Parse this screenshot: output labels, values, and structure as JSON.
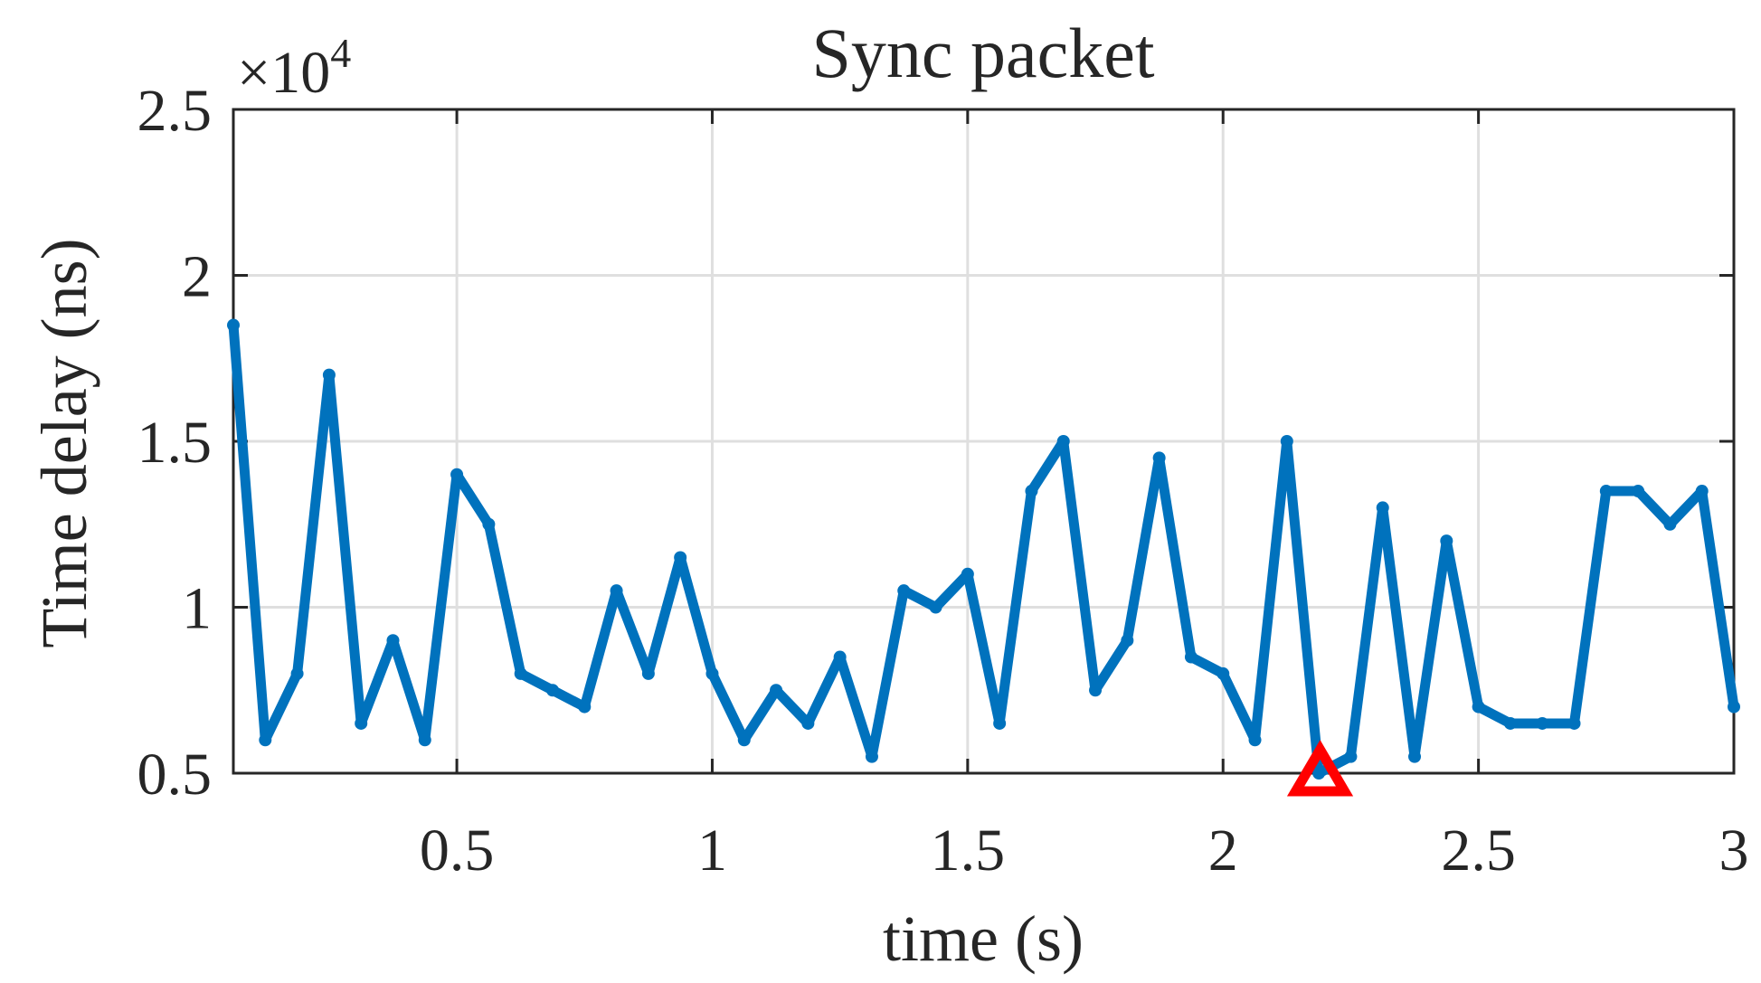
{
  "chart_data": {
    "type": "line",
    "title": "Sync packet",
    "xlabel": "time (s)",
    "ylabel": "Time delay (ns)",
    "y_exponent_label": "×10",
    "y_exponent_power": "4",
    "xlim": [
      0.0625,
      3
    ],
    "ylim": [
      5000,
      25000
    ],
    "x_ticks": [
      0.5,
      1,
      1.5,
      2,
      2.5,
      3
    ],
    "x_tick_labels": [
      "0.5",
      "1",
      "1.5",
      "2",
      "2.5",
      "3"
    ],
    "y_ticks": [
      5000,
      10000,
      15000,
      20000,
      25000
    ],
    "y_tick_labels": [
      "0.5",
      "1",
      "1.5",
      "2",
      "2.5"
    ],
    "grid": true,
    "series": [
      {
        "color": "#0072BD",
        "x": [
          0.0625,
          0.125,
          0.1875,
          0.25,
          0.3125,
          0.375,
          0.4375,
          0.5,
          0.5625,
          0.625,
          0.6875,
          0.75,
          0.8125,
          0.875,
          0.9375,
          1.0,
          1.0625,
          1.125,
          1.1875,
          1.25,
          1.3125,
          1.375,
          1.4375,
          1.5,
          1.5625,
          1.625,
          1.6875,
          1.75,
          1.8125,
          1.875,
          1.9375,
          2.0,
          2.0625,
          2.125,
          2.1875,
          2.25,
          2.3125,
          2.375,
          2.4375,
          2.5,
          2.5625,
          2.625,
          2.6875,
          2.75,
          2.8125,
          2.875,
          2.9375,
          3.0
        ],
        "y": [
          18500,
          6000,
          8000,
          17000,
          6500,
          9000,
          6000,
          14000,
          12500,
          8000,
          7500,
          7000,
          10500,
          8000,
          11500,
          8000,
          6000,
          7500,
          6500,
          8500,
          5500,
          10500,
          10000,
          11000,
          6500,
          13500,
          15000,
          7500,
          9000,
          14500,
          8500,
          8000,
          6000,
          15000,
          5000,
          5500,
          13000,
          5500,
          12000,
          7000,
          6500,
          6500,
          6500,
          13500,
          13500,
          12500,
          13500,
          7000
        ]
      }
    ],
    "annotations": [
      {
        "type": "triangle-marker",
        "color": "#ff0000",
        "x": 2.19,
        "y": 5000
      }
    ]
  }
}
